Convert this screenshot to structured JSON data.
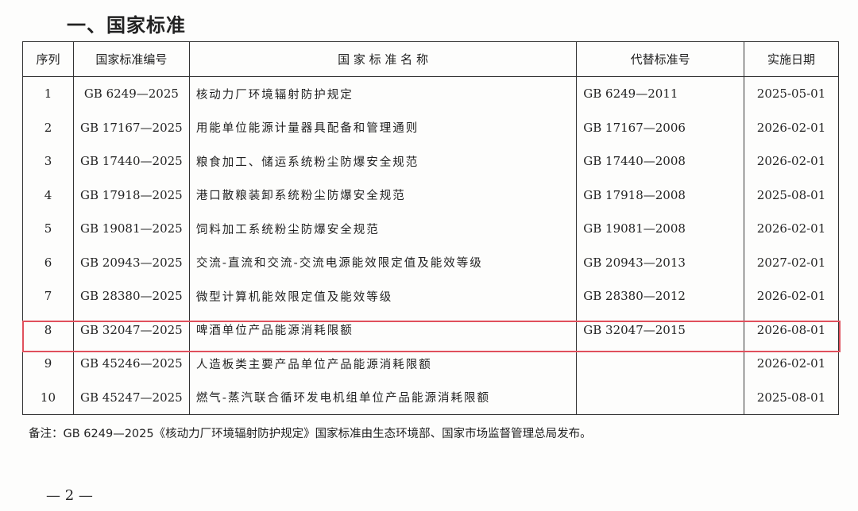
{
  "title": "一、国家标准",
  "headers": [
    "序列",
    "国家标准编号",
    "国 家 标 准 名 称",
    "代替标准号",
    "实施日期"
  ],
  "rows": [
    [
      "1",
      "GB 6249—2025",
      "核动力厂环境辐射防护规定",
      "GB 6249—2011",
      "2025-05-01"
    ],
    [
      "2",
      "GB 17167—2025",
      "用能单位能源计量器具配备和管理通则",
      "GB 17167—2006",
      "2026-02-01"
    ],
    [
      "3",
      "GB 17440—2025",
      "粮食加工、储运系统粉尘防爆安全规范",
      "GB 17440—2008",
      "2026-02-01"
    ],
    [
      "4",
      "GB 17918—2025",
      "港口散粮装卸系统粉尘防爆安全规范",
      "GB 17918—2008",
      "2025-08-01"
    ],
    [
      "5",
      "GB 19081—2025",
      "饲料加工系统粉尘防爆安全规范",
      "GB 19081—2008",
      "2026-02-01"
    ],
    [
      "6",
      "GB 20943—2025",
      "交流-直流和交流-交流电源能效限定值及能效等级",
      "GB 20943—2013",
      "2027-02-01"
    ],
    [
      "7",
      "GB 28380—2025",
      "微型计算机能效限定值及能效等级",
      "GB 28380—2012",
      "2026-02-01"
    ],
    [
      "8",
      "GB 32047—2025",
      "啤酒单位产品能源消耗限额",
      "GB 32047—2015",
      "2026-08-01"
    ],
    [
      "9",
      "GB 45246—2025",
      "人造板类主要产品单位产品能源消耗限额",
      "",
      "2026-02-01"
    ],
    [
      "10",
      "GB 45247—2025",
      "燃气-蒸汽联合循环发电机组单位产品能源消耗限额",
      "",
      "2025-08-01"
    ]
  ],
  "highlight_color": "#e0505c",
  "note": "备注：GB 6249—2025《核动力厂环境辐射防护规定》国家标准由生态环境部、国家市场监督管理总局发布。",
  "page_number": "— 2 —"
}
